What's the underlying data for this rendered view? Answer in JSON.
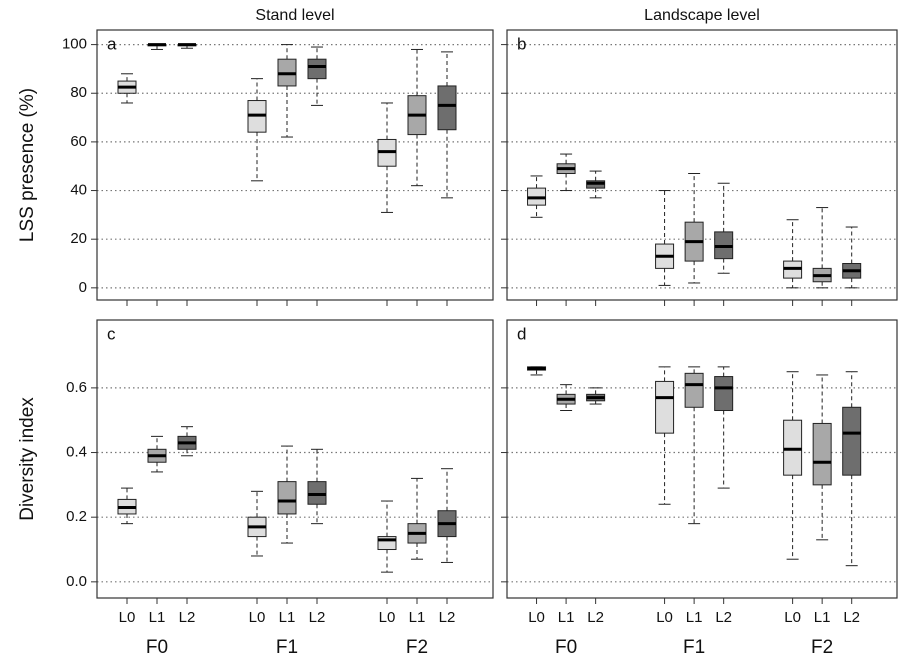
{
  "chart_data": [
    {
      "type": "box",
      "title": "Stand level",
      "ylabel": "LSS presence (%)",
      "panel_label": "a",
      "ylim": [
        -5,
        106
      ],
      "yticks": [
        0,
        20,
        40,
        60,
        80,
        100
      ],
      "grid": true,
      "series": [
        {
          "color": "#dedede",
          "boxes": [
            {
              "min": 76,
              "q1": 80,
              "median": 82.5,
              "q3": 85,
              "max": 88
            },
            {
              "min": 44,
              "q1": 64,
              "median": 71,
              "q3": 77,
              "max": 86
            },
            {
              "min": 31,
              "q1": 50,
              "median": 56,
              "q3": 61,
              "max": 76
            }
          ]
        },
        {
          "color": "#a8a8a8",
          "boxes": [
            {
              "min": 98,
              "q1": 99.5,
              "median": 100,
              "q3": 100,
              "max": 100
            },
            {
              "min": 62,
              "q1": 83,
              "median": 88,
              "q3": 94,
              "max": 100
            },
            {
              "min": 42,
              "q1": 63,
              "median": 71,
              "q3": 79,
              "max": 98
            }
          ]
        },
        {
          "color": "#6e6e6e",
          "boxes": [
            {
              "min": 98.5,
              "q1": 99.5,
              "median": 100,
              "q3": 100,
              "max": 100
            },
            {
              "min": 75,
              "q1": 86,
              "median": 91,
              "q3": 94,
              "max": 99
            },
            {
              "min": 37,
              "q1": 65,
              "median": 75,
              "q3": 83,
              "max": 97
            }
          ]
        }
      ]
    },
    {
      "type": "box",
      "title": "Landscape level",
      "panel_label": "b",
      "ylim": [
        -5,
        106
      ],
      "yticks": [
        0,
        20,
        40,
        60,
        80,
        100
      ],
      "grid": true,
      "series": [
        {
          "color": "#dedede",
          "boxes": [
            {
              "min": 29,
              "q1": 34,
              "median": 37,
              "q3": 41,
              "max": 46
            },
            {
              "min": 1,
              "q1": 8,
              "median": 13,
              "q3": 18,
              "max": 40
            },
            {
              "min": 0,
              "q1": 4,
              "median": 8,
              "q3": 11,
              "max": 28
            }
          ]
        },
        {
          "color": "#a8a8a8",
          "boxes": [
            {
              "min": 40,
              "q1": 47,
              "median": 49,
              "q3": 51,
              "max": 55
            },
            {
              "min": 2,
              "q1": 11,
              "median": 19,
              "q3": 27,
              "max": 47
            },
            {
              "min": 0,
              "q1": 2.5,
              "median": 5,
              "q3": 8,
              "max": 33
            }
          ]
        },
        {
          "color": "#6e6e6e",
          "boxes": [
            {
              "min": 37,
              "q1": 41,
              "median": 43,
              "q3": 44,
              "max": 48
            },
            {
              "min": 6,
              "q1": 12,
              "median": 17,
              "q3": 23,
              "max": 43
            },
            {
              "min": 0,
              "q1": 4,
              "median": 7,
              "q3": 10,
              "max": 25
            }
          ]
        }
      ]
    },
    {
      "type": "box",
      "ylabel": "Diversity index",
      "panel_label": "c",
      "ylim": [
        -0.05,
        0.81
      ],
      "yticks": [
        {
          "value": 0,
          "label": "0.0"
        },
        0.2,
        0.4,
        0.6
      ],
      "grid": true,
      "groups": [
        "F0",
        "F1",
        "F2"
      ],
      "series": [
        {
          "name": "L0",
          "color": "#dedede",
          "boxes": [
            {
              "min": 0.18,
              "q1": 0.21,
              "median": 0.23,
              "q3": 0.255,
              "max": 0.29
            },
            {
              "min": 0.08,
              "q1": 0.14,
              "median": 0.17,
              "q3": 0.2,
              "max": 0.28
            },
            {
              "min": 0.03,
              "q1": 0.1,
              "median": 0.13,
              "q3": 0.14,
              "max": 0.25
            }
          ]
        },
        {
          "name": "L1",
          "color": "#a8a8a8",
          "boxes": [
            {
              "min": 0.34,
              "q1": 0.37,
              "median": 0.39,
              "q3": 0.41,
              "max": 0.45
            },
            {
              "min": 0.12,
              "q1": 0.21,
              "median": 0.25,
              "q3": 0.31,
              "max": 0.42
            },
            {
              "min": 0.07,
              "q1": 0.12,
              "median": 0.15,
              "q3": 0.18,
              "max": 0.32
            }
          ]
        },
        {
          "name": "L2",
          "color": "#6e6e6e",
          "boxes": [
            {
              "min": 0.39,
              "q1": 0.41,
              "median": 0.43,
              "q3": 0.45,
              "max": 0.48
            },
            {
              "min": 0.18,
              "q1": 0.24,
              "median": 0.27,
              "q3": 0.31,
              "max": 0.41
            },
            {
              "min": 0.06,
              "q1": 0.14,
              "median": 0.18,
              "q3": 0.22,
              "max": 0.35
            }
          ]
        }
      ]
    },
    {
      "type": "box",
      "panel_label": "d",
      "ylim": [
        -0.05,
        0.81
      ],
      "yticks": [
        0,
        0.2,
        0.4,
        0.6
      ],
      "grid": true,
      "groups": [
        "F0",
        "F1",
        "F2"
      ],
      "series": [
        {
          "name": "L0",
          "color": "#dedede",
          "boxes": [
            {
              "min": 0.64,
              "q1": 0.655,
              "median": 0.66,
              "q3": 0.665,
              "max": 0.665
            },
            {
              "min": 0.24,
              "q1": 0.46,
              "median": 0.57,
              "q3": 0.62,
              "max": 0.665
            },
            {
              "min": 0.07,
              "q1": 0.33,
              "median": 0.41,
              "q3": 0.5,
              "max": 0.65
            }
          ]
        },
        {
          "name": "L1",
          "color": "#a8a8a8",
          "boxes": [
            {
              "min": 0.53,
              "q1": 0.55,
              "median": 0.565,
              "q3": 0.58,
              "max": 0.61
            },
            {
              "min": 0.18,
              "q1": 0.54,
              "median": 0.61,
              "q3": 0.645,
              "max": 0.665
            },
            {
              "min": 0.13,
              "q1": 0.3,
              "median": 0.37,
              "q3": 0.49,
              "max": 0.64
            }
          ]
        },
        {
          "name": "L2",
          "color": "#6e6e6e",
          "boxes": [
            {
              "min": 0.55,
              "q1": 0.56,
              "median": 0.57,
              "q3": 0.58,
              "max": 0.6
            },
            {
              "min": 0.29,
              "q1": 0.53,
              "median": 0.6,
              "q3": 0.635,
              "max": 0.665
            },
            {
              "min": 0.05,
              "q1": 0.33,
              "median": 0.46,
              "q3": 0.54,
              "max": 0.65
            }
          ]
        }
      ]
    }
  ]
}
